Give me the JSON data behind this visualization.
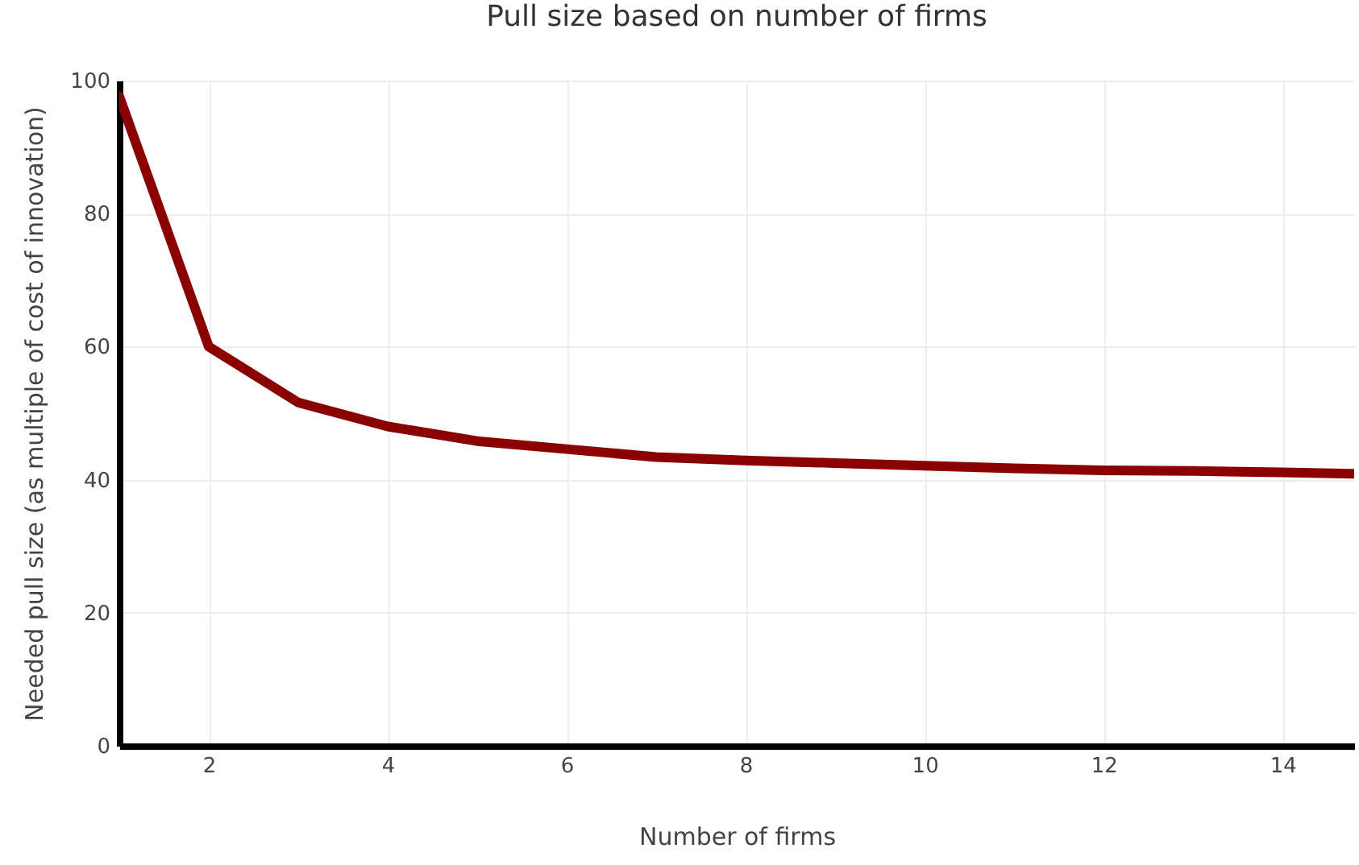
{
  "chart_data": {
    "type": "line",
    "title": "Pull size based on number of firms",
    "xlabel": "Number of firms",
    "ylabel": "Needed pull size (as multiple of cost of innovation)",
    "x": [
      1,
      2,
      3,
      4,
      5,
      6,
      7,
      8,
      9,
      10,
      11,
      12,
      13,
      14,
      14.8
    ],
    "series": [
      {
        "color": "#8b0000",
        "values": [
          97.6,
          60,
          51.6,
          48,
          45.8,
          44.6,
          43.4,
          42.9,
          42.5,
          42.1,
          41.7,
          41.4,
          41.3,
          41.1,
          40.9
        ]
      }
    ],
    "xlim": [
      1,
      14.8
    ],
    "xticks": [
      2,
      4,
      6,
      8,
      10,
      12,
      14
    ],
    "ylim": [
      0,
      100
    ],
    "yticks": [
      0,
      20,
      40,
      60,
      80,
      100
    ],
    "grid": true,
    "legend": false,
    "marker": "none",
    "line_style": "solid"
  }
}
